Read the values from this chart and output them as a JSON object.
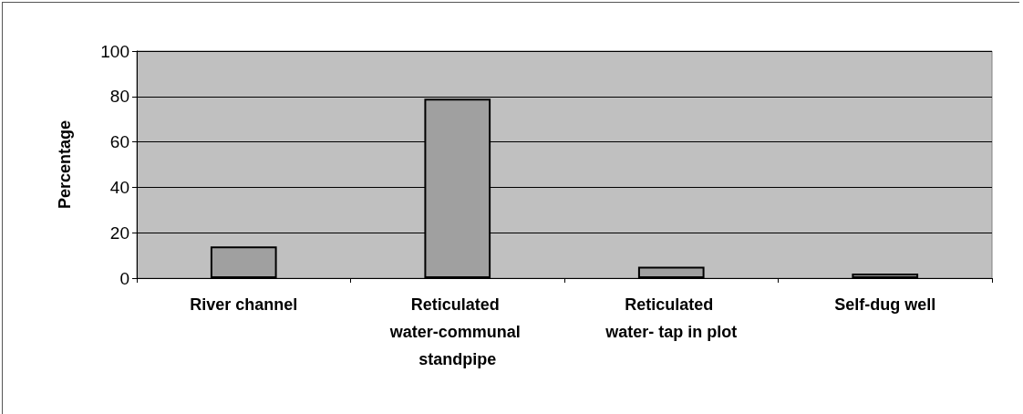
{
  "chart_data": {
    "type": "bar",
    "ylabel": "Percentage",
    "categories": [
      "River channel",
      "Reticulated water-communal standpipe",
      "Reticulated water- tap in plot",
      "Self-dug well"
    ],
    "values": [
      14,
      79,
      5,
      2
    ],
    "color": "#a0a0a0",
    "ylim": [
      0,
      100
    ],
    "yticks": [
      0,
      20,
      40,
      60,
      80,
      100
    ],
    "grid": "y"
  }
}
